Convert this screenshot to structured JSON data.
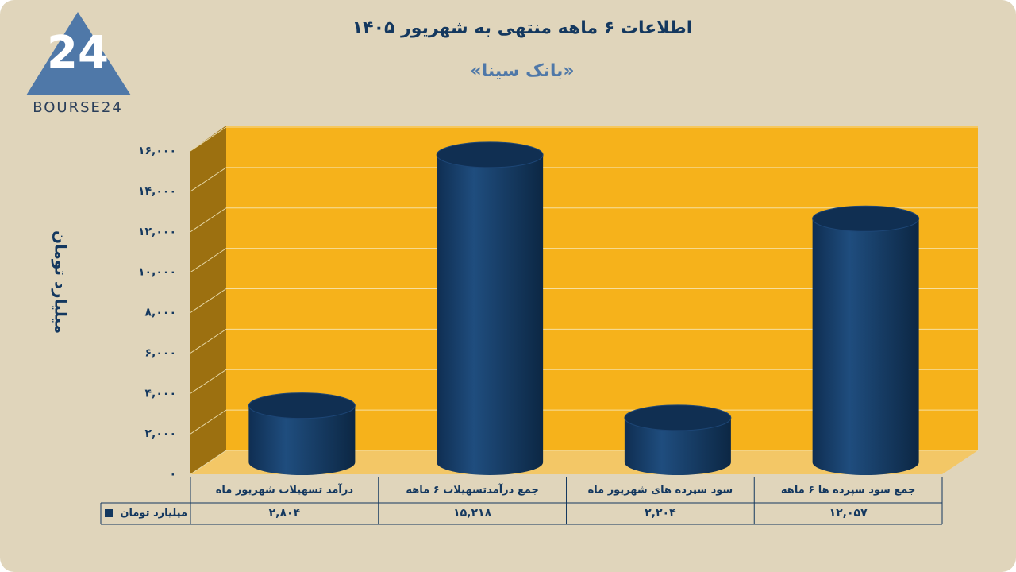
{
  "logo": "BOURSE24",
  "chart_data": {
    "type": "bar",
    "style": "cylinder",
    "title": "اطلاعات ۶ ماهه منتهی به شهریور ۱۴۰۵",
    "subtitle": "«بانک سینا»",
    "y_label": "میلیارد تومان",
    "categories": [
      "درآمد تسهیلات شهریور  ماه",
      "جمع درآمدتسهیلات ۶ ماهه",
      "سود سپرده های شهریور ماه",
      "جمع سود سپرده ها ۶ ماهه"
    ],
    "series": [
      {
        "name": "میلیارد تومان",
        "color": "#14385f",
        "values": [
          2804,
          15218,
          2204,
          12057
        ],
        "value_labels": [
          "۲,۸۰۴",
          "۱۵,۲۱۸",
          "۲,۲۰۴",
          "۱۲,۰۵۷"
        ]
      }
    ],
    "ylim": [
      0,
      16000
    ],
    "yticks": [
      {
        "value": 0,
        "label": "۰"
      },
      {
        "value": 2000,
        "label": "۲,۰۰۰"
      },
      {
        "value": 4000,
        "label": "۴,۰۰۰"
      },
      {
        "value": 6000,
        "label": "۶,۰۰۰"
      },
      {
        "value": 8000,
        "label": "۸,۰۰۰"
      },
      {
        "value": 10000,
        "label": "۱۰,۰۰۰"
      },
      {
        "value": 12000,
        "label": "۱۲,۰۰۰"
      },
      {
        "value": 14000,
        "label": "۱۴,۰۰۰"
      },
      {
        "value": 16000,
        "label": "۱۶,۰۰۰"
      }
    ],
    "grid": true
  }
}
